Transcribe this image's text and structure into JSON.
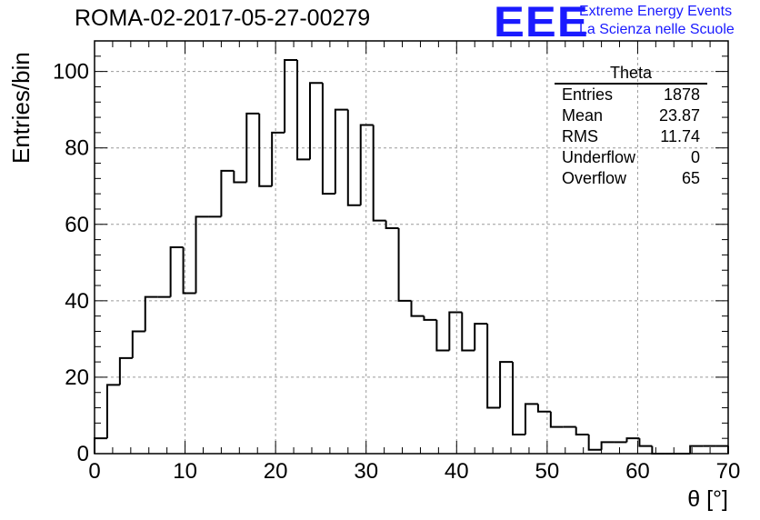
{
  "title": "ROMA-02-2017-05-27-00279",
  "logo": {
    "text": "EEE",
    "line1": "Extreme Energy Events",
    "line2": "La Scienza nelle Scuole",
    "color": "#1a1aff"
  },
  "stats": {
    "name": "Theta",
    "rows": [
      {
        "label": "Entries",
        "value": "1878"
      },
      {
        "label": "Mean",
        "value": "23.87"
      },
      {
        "label": "RMS",
        "value": "11.74"
      },
      {
        "label": "Underflow",
        "value": "0"
      },
      {
        "label": "Overflow",
        "value": "65"
      }
    ]
  },
  "chart_data": {
    "type": "histogram",
    "title": "ROMA-02-2017-05-27-00279",
    "xlabel": "θ [°]",
    "ylabel": "Entries/bin",
    "xlim": [
      0,
      70
    ],
    "ylim": [
      0,
      108
    ],
    "grid": true,
    "bin_width": 1.4,
    "x_ticks": [
      0,
      10,
      20,
      30,
      40,
      50,
      60,
      70
    ],
    "y_ticks": [
      0,
      20,
      40,
      60,
      80,
      100
    ],
    "values": [
      4,
      18,
      25,
      32,
      41,
      41,
      54,
      42,
      62,
      62,
      74,
      71,
      89,
      70,
      84,
      103,
      77,
      97,
      68,
      90,
      65,
      86,
      61,
      59,
      40,
      36,
      35,
      27,
      37,
      27,
      34,
      12,
      24,
      5,
      13,
      11,
      7,
      7,
      5,
      1,
      3,
      3,
      4,
      2,
      0,
      0,
      0,
      2,
      2,
      2
    ]
  }
}
